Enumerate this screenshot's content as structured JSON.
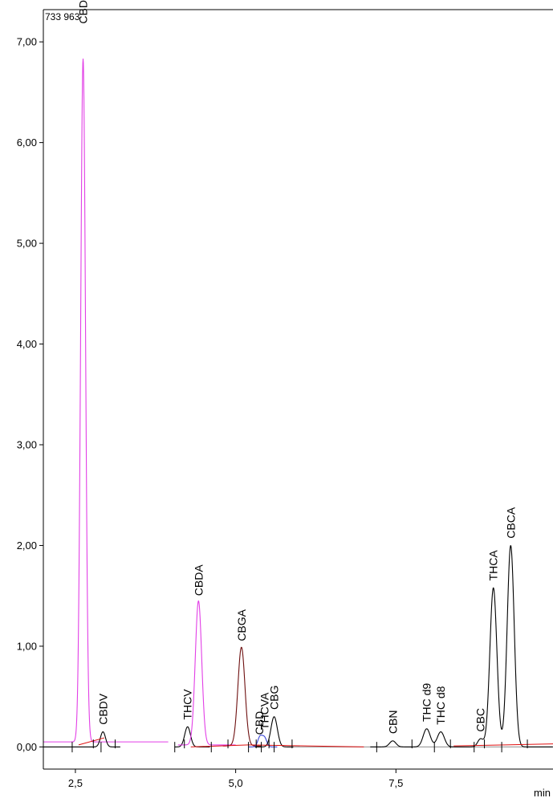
{
  "chart_data": {
    "type": "line",
    "title": "",
    "corner_value": "733 963",
    "xlabel": "min",
    "ylabel": "",
    "xlim": [
      2.0,
      9.95
    ],
    "ylim": [
      -0.22,
      7.32
    ],
    "x_ticks": [
      {
        "value": 2.5,
        "label": "2,5"
      },
      {
        "value": 5.0,
        "label": "5,0"
      },
      {
        "value": 7.5,
        "label": "7,5"
      }
    ],
    "y_ticks": [
      {
        "value": 0,
        "label": "0,00"
      },
      {
        "value": 1,
        "label": "1,00"
      },
      {
        "value": 2,
        "label": "2,00"
      },
      {
        "value": 3,
        "label": "3,00"
      },
      {
        "value": 4,
        "label": "4,00"
      },
      {
        "value": 5,
        "label": "5,00"
      },
      {
        "value": 6,
        "label": "6,00"
      },
      {
        "value": 7,
        "label": "7,00"
      }
    ],
    "colors": {
      "magenta": "#e23fe6",
      "black": "#000000",
      "darkred": "#6e1010",
      "blue": "#3b46d6",
      "red": "#e01010",
      "gray": "#9a9a9a"
    },
    "series": [
      {
        "color": "magenta",
        "baseline": 0.05,
        "x_range": [
          2.0,
          3.95
        ],
        "peaks": [
          {
            "x": 2.62,
            "height": 6.78,
            "sigma": 0.038
          }
        ]
      },
      {
        "color": "black",
        "baseline": 0.0,
        "x_range": [
          2.0,
          3.2
        ],
        "peaks": [
          {
            "x": 2.93,
            "height": 0.15,
            "sigma": 0.04
          }
        ]
      },
      {
        "color": "black",
        "baseline": 0.0,
        "x_range": [
          4.05,
          4.6
        ],
        "peaks": [
          {
            "x": 4.25,
            "height": 0.2,
            "sigma": 0.045
          }
        ]
      },
      {
        "color": "magenta",
        "baseline": 0.02,
        "x_range": [
          4.1,
          5.0
        ],
        "peaks": [
          {
            "x": 4.42,
            "height": 1.43,
            "sigma": 0.05
          }
        ]
      },
      {
        "color": "darkred",
        "baseline": 0.01,
        "x_range": [
          4.8,
          5.4
        ],
        "peaks": [
          {
            "x": 5.09,
            "height": 0.98,
            "sigma": 0.055
          }
        ]
      },
      {
        "color": "blue",
        "baseline": 0.0,
        "x_range": [
          5.2,
          5.65
        ],
        "peaks": [
          {
            "x": 5.38,
            "height": 0.1,
            "sigma": 0.035
          },
          {
            "x": 5.45,
            "height": 0.09,
            "sigma": 0.035
          }
        ]
      },
      {
        "color": "black",
        "baseline": 0.0,
        "x_range": [
          5.3,
          6.0
        ],
        "peaks": [
          {
            "x": 5.6,
            "height": 0.3,
            "sigma": 0.05
          }
        ]
      },
      {
        "color": "gray",
        "baseline": 0.0,
        "x_range": [
          5.9,
          9.95
        ],
        "peaks": []
      },
      {
        "color": "black",
        "baseline": 0.0,
        "x_range": [
          7.1,
          9.95
        ],
        "peaks": [
          {
            "x": 7.45,
            "height": 0.06,
            "sigma": 0.05
          },
          {
            "x": 7.98,
            "height": 0.18,
            "sigma": 0.055
          },
          {
            "x": 8.2,
            "height": 0.15,
            "sigma": 0.055
          },
          {
            "x": 8.82,
            "height": 0.08,
            "sigma": 0.045
          },
          {
            "x": 9.02,
            "height": 1.58,
            "sigma": 0.055
          },
          {
            "x": 9.29,
            "height": 2.0,
            "sigma": 0.055
          }
        ]
      }
    ],
    "baseline_segments": [
      {
        "color": "red",
        "x": [
          2.55,
          2.95
        ],
        "y": [
          0.02,
          0.09
        ]
      },
      {
        "color": "red",
        "x": [
          4.3,
          5.2
        ],
        "y": [
          0.0,
          0.02
        ]
      },
      {
        "color": "red",
        "x": [
          5.2,
          7.0
        ],
        "y": [
          0.02,
          0.0
        ]
      },
      {
        "color": "red",
        "x": [
          8.4,
          9.95
        ],
        "y": [
          0.01,
          0.03
        ]
      }
    ],
    "peak_labels": [
      {
        "text": "CBDVA",
        "x": 2.62,
        "y": 7.18
      },
      {
        "text": "CBDV",
        "x": 2.93,
        "y": 0.22
      },
      {
        "text": "THCV",
        "x": 4.25,
        "y": 0.27
      },
      {
        "text": "CBDA",
        "x": 4.42,
        "y": 1.5
      },
      {
        "text": "CBGA",
        "x": 5.09,
        "y": 1.05
      },
      {
        "text": "CBD",
        "x": 5.37,
        "y": 0.12
      },
      {
        "text": "THCVA",
        "x": 5.45,
        "y": 0.17
      },
      {
        "text": "CBG",
        "x": 5.6,
        "y": 0.37
      },
      {
        "text": "CBN",
        "x": 7.45,
        "y": 0.13
      },
      {
        "text": "THC d9",
        "x": 7.98,
        "y": 0.25
      },
      {
        "text": "THC d8",
        "x": 8.2,
        "y": 0.22
      },
      {
        "text": "CBC",
        "x": 8.82,
        "y": 0.15
      },
      {
        "text": "THCA",
        "x": 9.02,
        "y": 1.65
      },
      {
        "text": "CBCA",
        "x": 9.29,
        "y": 2.07
      }
    ],
    "integration_marks": [
      2.45,
      2.78,
      2.9,
      3.12,
      4.05,
      4.2,
      4.62,
      4.88,
      5.2,
      5.32,
      5.4,
      5.52,
      5.6,
      5.88,
      7.2,
      7.75,
      8.1,
      8.35,
      8.72,
      8.88,
      9.15,
      9.55
    ]
  }
}
